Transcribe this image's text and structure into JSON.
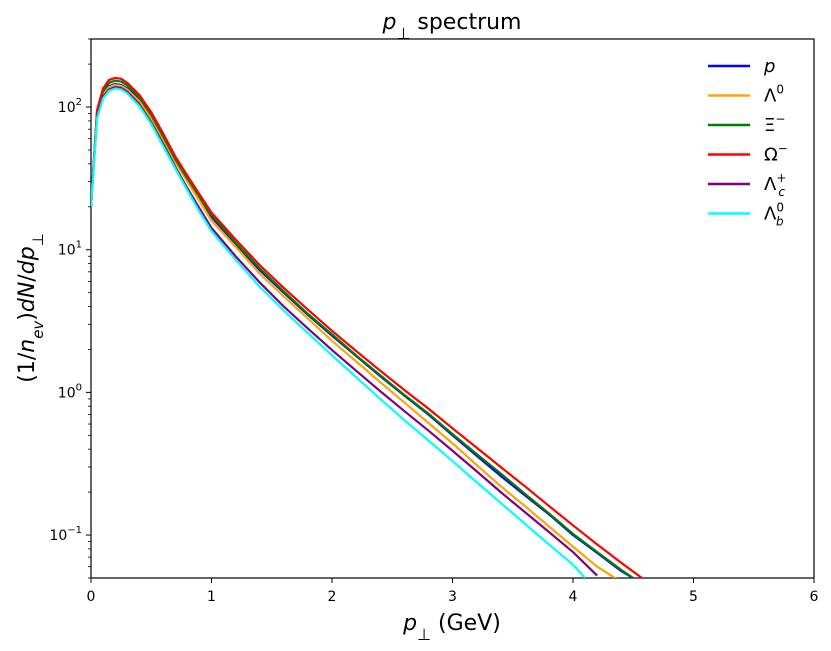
{
  "chart_data": {
    "type": "line",
    "title": "p⊥ spectrum",
    "xlabel": "p⊥ (GeV)",
    "ylabel": "(1/n_ev)dN/dp⊥",
    "xlim": [
      0,
      6
    ],
    "ylim": [
      0.05,
      300
    ],
    "yscale": "log",
    "grid": false,
    "legend_position": "top-right",
    "x_ticks": [
      {
        "value": 0,
        "label": "0"
      },
      {
        "value": 1,
        "label": "1"
      },
      {
        "value": 2,
        "label": "2"
      },
      {
        "value": 3,
        "label": "3"
      },
      {
        "value": 4,
        "label": "4"
      },
      {
        "value": 5,
        "label": "5"
      },
      {
        "value": 6,
        "label": "6"
      }
    ],
    "y_ticks": [
      {
        "value": 0.1,
        "base": "10",
        "exp": "−1"
      },
      {
        "value": 1,
        "base": "10",
        "exp": "0"
      },
      {
        "value": 10,
        "base": "10",
        "exp": "1"
      },
      {
        "value": 100,
        "base": "10",
        "exp": "2"
      }
    ],
    "series": [
      {
        "name": "p",
        "color": "#0000ff",
        "points": [
          [
            0,
            20
          ],
          [
            0.05,
            90
          ],
          [
            0.1,
            125
          ],
          [
            0.15,
            140
          ],
          [
            0.2,
            145
          ],
          [
            0.25,
            143
          ],
          [
            0.3,
            135
          ],
          [
            0.4,
            112
          ],
          [
            0.5,
            85
          ],
          [
            0.6,
            60
          ],
          [
            0.7,
            42
          ],
          [
            0.8,
            31
          ],
          [
            0.9,
            23
          ],
          [
            1.0,
            17
          ],
          [
            1.2,
            11
          ],
          [
            1.4,
            7.2
          ],
          [
            1.6,
            5.0
          ],
          [
            1.8,
            3.5
          ],
          [
            2.0,
            2.5
          ],
          [
            2.2,
            1.8
          ],
          [
            2.4,
            1.3
          ],
          [
            2.6,
            0.95
          ],
          [
            2.8,
            0.7
          ],
          [
            3.0,
            0.5
          ],
          [
            3.2,
            0.36
          ],
          [
            3.4,
            0.26
          ],
          [
            3.6,
            0.19
          ],
          [
            3.8,
            0.14
          ],
          [
            4.0,
            0.1
          ],
          [
            4.2,
            0.075
          ],
          [
            4.4,
            0.056
          ],
          [
            4.55,
            0.047
          ]
        ]
      },
      {
        "name": "Λ0",
        "color": "#ffa500",
        "points": [
          [
            0,
            20
          ],
          [
            0.05,
            88
          ],
          [
            0.1,
            122
          ],
          [
            0.15,
            138
          ],
          [
            0.2,
            143
          ],
          [
            0.25,
            141
          ],
          [
            0.3,
            133
          ],
          [
            0.4,
            110
          ],
          [
            0.5,
            83
          ],
          [
            0.6,
            58
          ],
          [
            0.7,
            41
          ],
          [
            0.8,
            30
          ],
          [
            0.9,
            22
          ],
          [
            1.0,
            16
          ],
          [
            1.2,
            10.5
          ],
          [
            1.4,
            6.8
          ],
          [
            1.6,
            4.7
          ],
          [
            1.8,
            3.3
          ],
          [
            2.0,
            2.3
          ],
          [
            2.2,
            1.65
          ],
          [
            2.4,
            1.18
          ],
          [
            2.6,
            0.85
          ],
          [
            2.8,
            0.61
          ],
          [
            3.0,
            0.44
          ],
          [
            3.2,
            0.31
          ],
          [
            3.4,
            0.22
          ],
          [
            3.6,
            0.16
          ],
          [
            3.8,
            0.115
          ],
          [
            4.0,
            0.083
          ],
          [
            4.2,
            0.06
          ],
          [
            4.4,
            0.047
          ]
        ]
      },
      {
        "name": "Ξ−",
        "color": "#008000",
        "points": [
          [
            0,
            20
          ],
          [
            0.05,
            92
          ],
          [
            0.1,
            130
          ],
          [
            0.15,
            148
          ],
          [
            0.2,
            153
          ],
          [
            0.25,
            151
          ],
          [
            0.3,
            142
          ],
          [
            0.4,
            117
          ],
          [
            0.5,
            88
          ],
          [
            0.6,
            62
          ],
          [
            0.7,
            43
          ],
          [
            0.8,
            31.5
          ],
          [
            0.9,
            23.5
          ],
          [
            1.0,
            17.5
          ],
          [
            1.2,
            11.2
          ],
          [
            1.4,
            7.4
          ],
          [
            1.6,
            5.1
          ],
          [
            1.8,
            3.55
          ],
          [
            2.0,
            2.55
          ],
          [
            2.2,
            1.82
          ],
          [
            2.4,
            1.32
          ],
          [
            2.6,
            0.96
          ],
          [
            2.8,
            0.71
          ],
          [
            3.0,
            0.51
          ],
          [
            3.2,
            0.37
          ],
          [
            3.4,
            0.27
          ],
          [
            3.6,
            0.195
          ],
          [
            3.8,
            0.142
          ],
          [
            4.0,
            0.102
          ],
          [
            4.2,
            0.076
          ],
          [
            4.4,
            0.057
          ],
          [
            4.5,
            0.05
          ]
        ]
      },
      {
        "name": "Ω−",
        "color": "#ff0000",
        "points": [
          [
            0,
            20
          ],
          [
            0.05,
            95
          ],
          [
            0.1,
            135
          ],
          [
            0.15,
            155
          ],
          [
            0.2,
            160
          ],
          [
            0.25,
            158
          ],
          [
            0.3,
            148
          ],
          [
            0.4,
            122
          ],
          [
            0.5,
            92
          ],
          [
            0.6,
            65
          ],
          [
            0.7,
            45
          ],
          [
            0.8,
            33
          ],
          [
            0.9,
            24.5
          ],
          [
            1.0,
            18.2
          ],
          [
            1.2,
            11.8
          ],
          [
            1.4,
            7.8
          ],
          [
            1.6,
            5.4
          ],
          [
            1.8,
            3.8
          ],
          [
            2.0,
            2.7
          ],
          [
            2.2,
            1.95
          ],
          [
            2.4,
            1.42
          ],
          [
            2.6,
            1.04
          ],
          [
            2.8,
            0.77
          ],
          [
            3.0,
            0.56
          ],
          [
            3.2,
            0.41
          ],
          [
            3.4,
            0.3
          ],
          [
            3.6,
            0.22
          ],
          [
            3.8,
            0.16
          ],
          [
            4.0,
            0.117
          ],
          [
            4.2,
            0.086
          ],
          [
            4.4,
            0.064
          ],
          [
            4.6,
            0.048
          ]
        ]
      },
      {
        "name": "Λc+",
        "color": "#800080",
        "points": [
          [
            0,
            20
          ],
          [
            0.05,
            85
          ],
          [
            0.1,
            118
          ],
          [
            0.15,
            133
          ],
          [
            0.2,
            138
          ],
          [
            0.25,
            136
          ],
          [
            0.3,
            128
          ],
          [
            0.4,
            105
          ],
          [
            0.5,
            78
          ],
          [
            0.6,
            55
          ],
          [
            0.7,
            38
          ],
          [
            0.8,
            27
          ],
          [
            0.9,
            19.5
          ],
          [
            1.0,
            14.2
          ],
          [
            1.2,
            9.0
          ],
          [
            1.4,
            5.9
          ],
          [
            1.6,
            4.0
          ],
          [
            1.8,
            2.8
          ],
          [
            2.0,
            1.98
          ],
          [
            2.2,
            1.42
          ],
          [
            2.4,
            1.02
          ],
          [
            2.6,
            0.74
          ],
          [
            2.8,
            0.54
          ],
          [
            3.0,
            0.39
          ],
          [
            3.2,
            0.28
          ],
          [
            3.4,
            0.2
          ],
          [
            3.6,
            0.145
          ],
          [
            3.8,
            0.105
          ],
          [
            4.0,
            0.076
          ],
          [
            4.2,
            0.052
          ]
        ]
      },
      {
        "name": "Λb0",
        "color": "#00ffff",
        "points": [
          [
            0,
            20
          ],
          [
            0.05,
            83
          ],
          [
            0.1,
            115
          ],
          [
            0.15,
            130
          ],
          [
            0.2,
            135
          ],
          [
            0.25,
            133
          ],
          [
            0.3,
            125
          ],
          [
            0.4,
            102
          ],
          [
            0.5,
            76
          ],
          [
            0.6,
            53
          ],
          [
            0.7,
            37
          ],
          [
            0.8,
            26
          ],
          [
            0.9,
            18.5
          ],
          [
            1.0,
            13.5
          ],
          [
            1.2,
            8.5
          ],
          [
            1.4,
            5.5
          ],
          [
            1.6,
            3.75
          ],
          [
            1.8,
            2.6
          ],
          [
            2.0,
            1.82
          ],
          [
            2.2,
            1.28
          ],
          [
            2.4,
            0.9
          ],
          [
            2.6,
            0.64
          ],
          [
            2.8,
            0.46
          ],
          [
            3.0,
            0.33
          ],
          [
            3.2,
            0.235
          ],
          [
            3.4,
            0.168
          ],
          [
            3.6,
            0.12
          ],
          [
            3.8,
            0.086
          ],
          [
            4.0,
            0.062
          ],
          [
            4.1,
            0.05
          ]
        ]
      }
    ]
  }
}
